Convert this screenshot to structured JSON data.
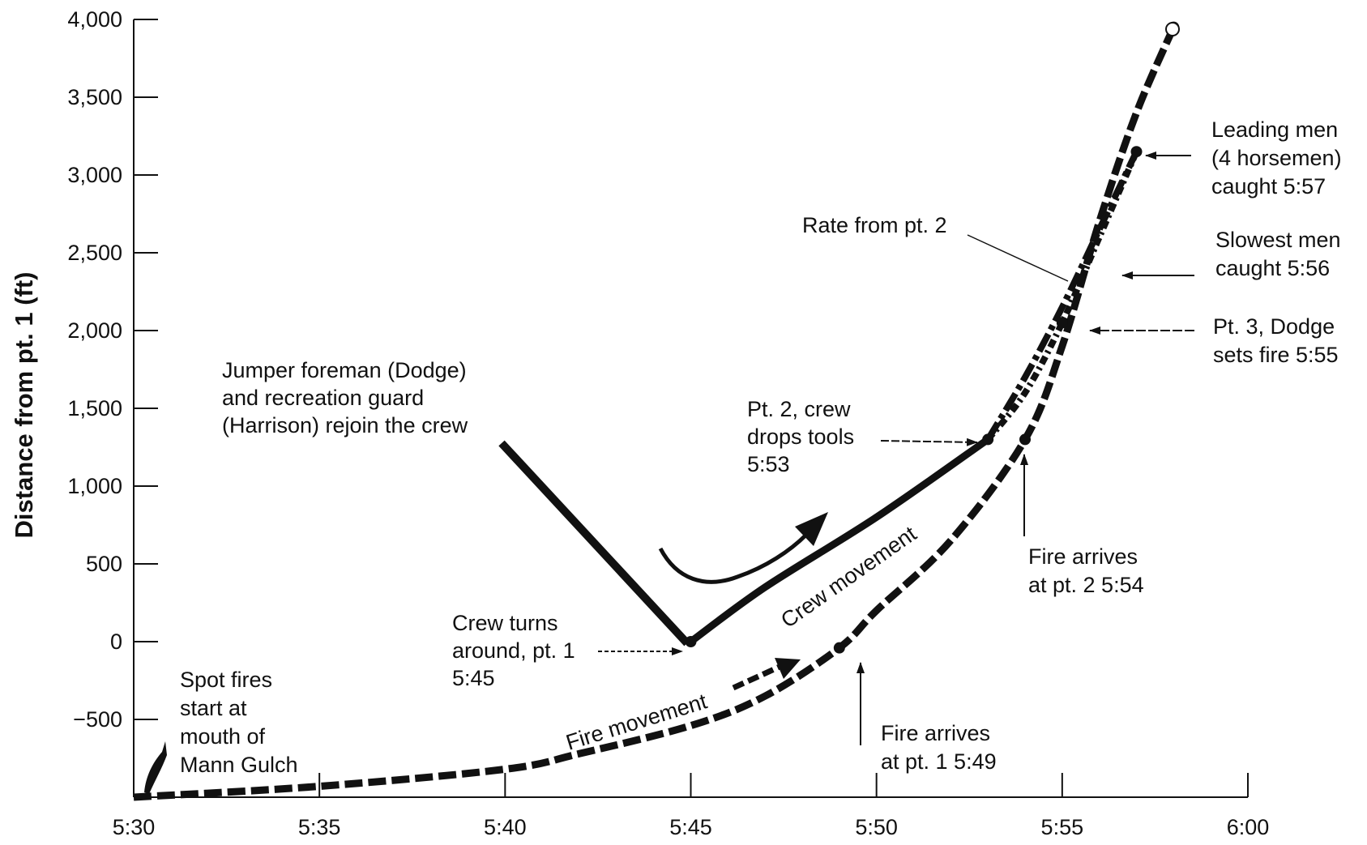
{
  "chart_data": {
    "type": "line",
    "title": "",
    "xlabel": "",
    "ylabel": "Distance from pt. 1 (ft)",
    "x_ticks": [
      "5:30",
      "5:35",
      "5:40",
      "5:45",
      "5:50",
      "5:55",
      "6:00"
    ],
    "y_ticks": [
      "4,000",
      "3,500",
      "3,000",
      "2,500",
      "2,000",
      "1,500",
      "1,000",
      "500",
      "0",
      "−500"
    ],
    "xlim_minutes_after_5_00": [
      30,
      60
    ],
    "ylim": [
      -1000,
      4000
    ],
    "grid": false,
    "series": [
      {
        "style": "dashed",
        "x": [
          "5:30",
          "5:35",
          "5:40",
          "5:42",
          "5:45",
          "5:47",
          "5:49",
          "5:50",
          "5:52",
          "5:54",
          "5:55",
          "5:56",
          "5:57",
          "5:58"
        ],
        "y": [
          -1000,
          -930,
          -820,
          -720,
          -540,
          -350,
          -40,
          200,
          650,
          1300,
          1900,
          2700,
          3400,
          3950
        ]
      },
      {
        "style": "solid",
        "x": [
          "5:45",
          "5:47",
          "5:50",
          "5:53"
        ],
        "y": [
          0,
          350,
          800,
          1300
        ]
      },
      {
        "style": "dash-dot",
        "x": [
          "5:53",
          "5:54",
          "5:55",
          "5:56",
          "5:57"
        ],
        "y": [
          1300,
          1700,
          2150,
          2650,
          3150
        ]
      },
      {
        "style": "dotted",
        "x": [
          "5:53",
          "5:54",
          "5:55",
          "5:56",
          "5:57"
        ],
        "y": [
          1300,
          1600,
          2050,
          2600,
          3150
        ]
      }
    ],
    "points": [
      {
        "x": "5:45",
        "y": 0
      },
      {
        "x": "5:49",
        "y": -40
      },
      {
        "x": "5:53",
        "y": 1300
      },
      {
        "x": "5:54",
        "y": 1300
      },
      {
        "x": "5:55",
        "y": 2050
      },
      {
        "x": "5:57",
        "y": 3150
      },
      {
        "x": "5:58",
        "y": 3950
      }
    ],
    "annotations": {
      "spot_fires": [
        "Spot fires",
        "start at",
        "mouth of",
        "Mann Gulch"
      ],
      "jumper": [
        "Jumper foreman (Dodge)",
        "and recreation guard",
        "(Harrison) rejoin the crew"
      ],
      "crew_turns": [
        "Crew turns",
        "around, pt. 1",
        "5:45"
      ],
      "fire_movement": "Fire movement",
      "crew_movement": "Crew movement",
      "pt2_crew": [
        "Pt. 2, crew",
        "drops tools",
        "5:53"
      ],
      "fire_pt1": [
        "Fire arrives",
        "at pt. 1  5:49"
      ],
      "fire_pt2": [
        "Fire arrives",
        "at pt. 2  5:54"
      ],
      "rate_pt2": "Rate from pt. 2",
      "leading_men": [
        "Leading men",
        "(4 horsemen)",
        "caught 5:57"
      ],
      "slowest_men": [
        "Slowest men",
        "caught 5:56"
      ],
      "pt3": [
        "Pt. 3, Dodge",
        "sets fire 5:55"
      ]
    }
  }
}
